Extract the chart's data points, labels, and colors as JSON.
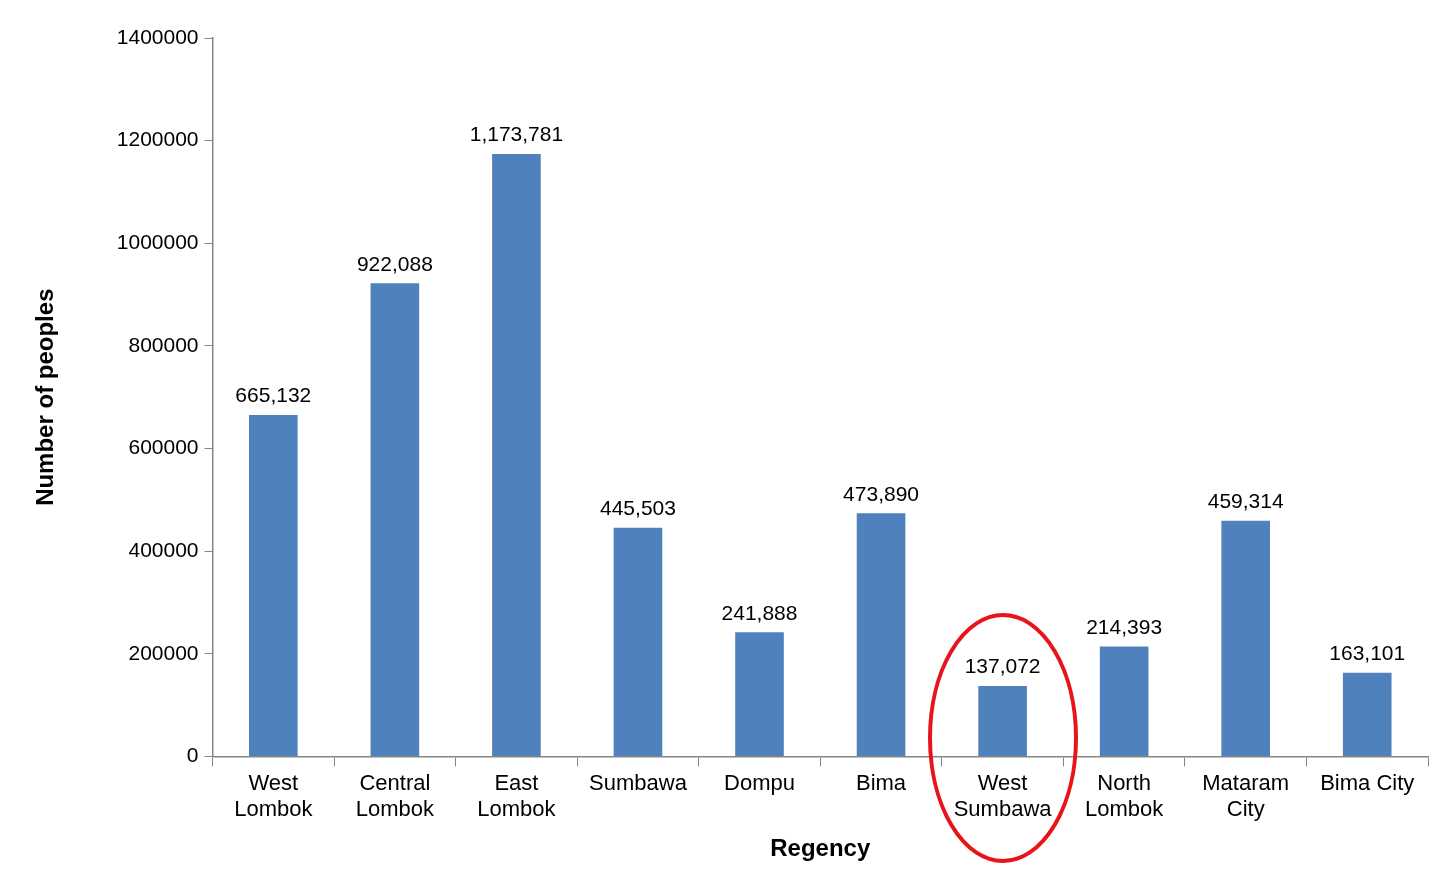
{
  "chart_data": {
    "type": "bar",
    "xlabel": "Regency",
    "ylabel": "Number of peoples",
    "categories": [
      "West Lombok",
      "Central Lombok",
      "East Lombok",
      "Sumbawa",
      "Dompu",
      "Bima",
      "West Sumbawa",
      "North Lombok",
      "Mataram City",
      "Bima City"
    ],
    "values": [
      665132,
      922088,
      1173781,
      445503,
      241888,
      473890,
      137072,
      214393,
      459314,
      163101
    ],
    "value_labels": [
      "665,132",
      "922,088",
      "1,173,781",
      "445,503",
      "241,888",
      "473,890",
      "137,072",
      "214,393",
      "459,314",
      "163,101"
    ],
    "color": "#4f81bd",
    "ylim": [
      0,
      1400000
    ],
    "yticks": [
      0,
      200000,
      400000,
      600000,
      800000,
      1000000,
      1200000,
      1400000
    ],
    "grid": false,
    "legend": false
  }
}
